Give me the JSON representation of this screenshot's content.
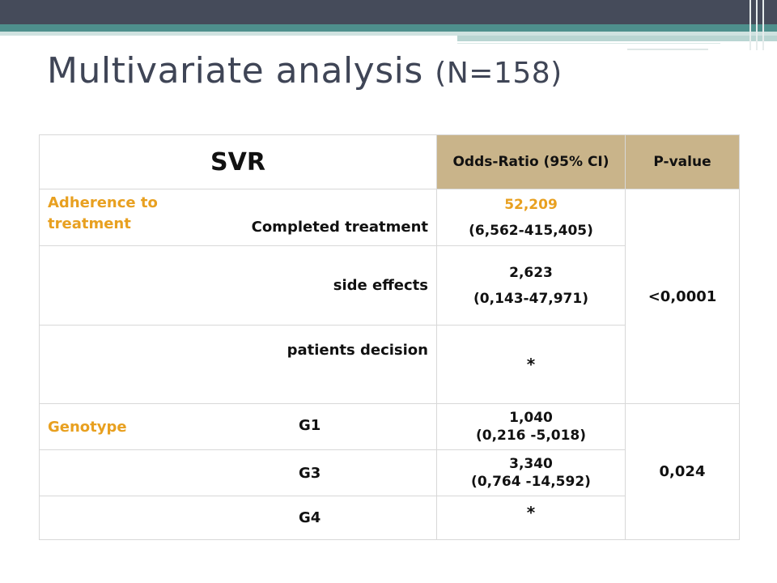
{
  "slide": {
    "title": "Multivariate analysis",
    "title_sub": "(N=158)"
  },
  "table": {
    "header": {
      "svr": "SVR",
      "odds_ratio": "Odds-Ratio (95% CI)",
      "p_value": "P-value"
    },
    "adherence": {
      "category": "Adherence to treatment",
      "rows": [
        {
          "label": "Completed  treatment",
          "or": "52,209",
          "ci": "(6,562-415,405)"
        },
        {
          "label": "side effects",
          "or": "2,623",
          "ci": "(0,143-47,971)"
        },
        {
          "label": "patients decision",
          "or": "*",
          "ci": ""
        }
      ],
      "p_value": "<0,0001"
    },
    "genotype": {
      "category": "Genotype",
      "rows": [
        {
          "label": "G1",
          "or": "1,040",
          "ci": "(0,216 -5,018)"
        },
        {
          "label": "G3",
          "or": "3,340",
          "ci": "(0,764 -14,592)"
        },
        {
          "label": "G4",
          "or": "*",
          "ci": ""
        }
      ],
      "p_value": "0,024"
    }
  }
}
